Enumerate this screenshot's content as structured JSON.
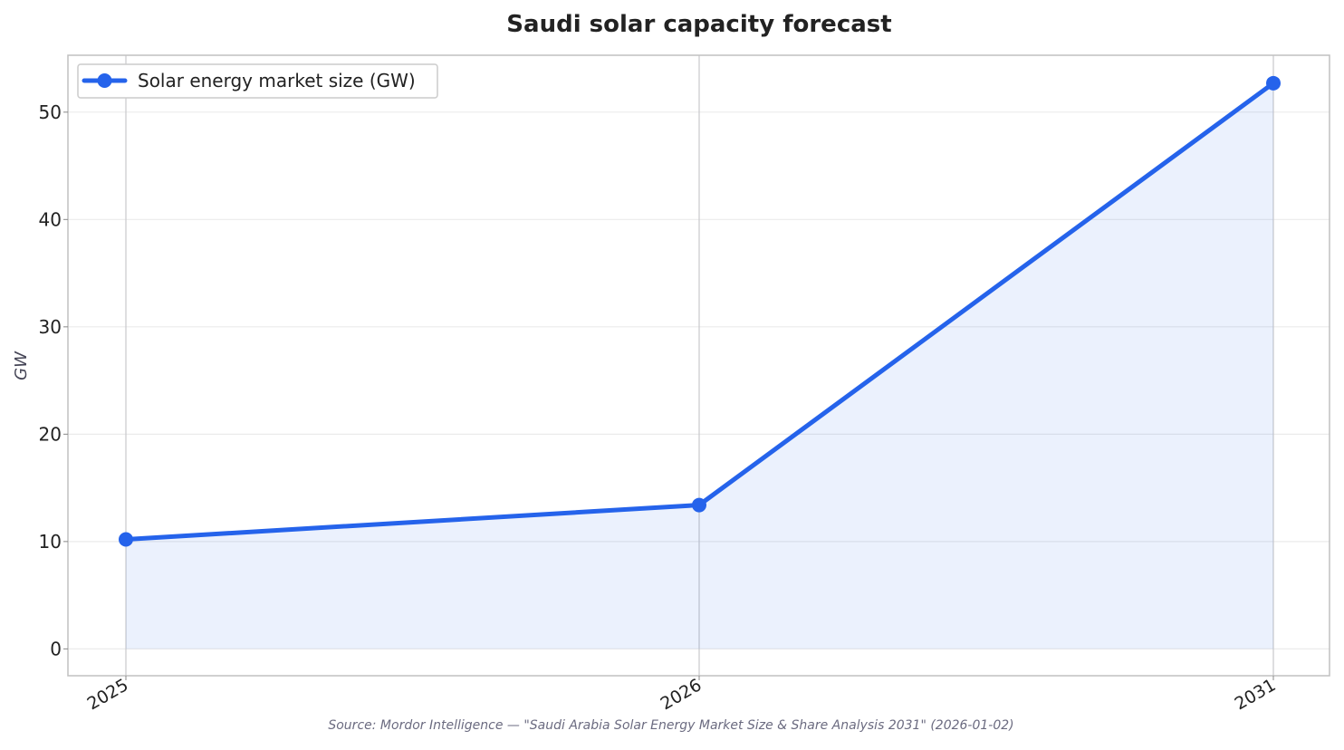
{
  "chart_data": {
    "type": "area",
    "title": "Saudi solar capacity forecast",
    "xlabel": "",
    "ylabel": "GW",
    "categories": [
      "2025",
      "2026",
      "2031"
    ],
    "series": [
      {
        "name": "Solar energy market size (GW)",
        "values": [
          10.2,
          13.4,
          52.7
        ]
      }
    ],
    "ylim": [
      -2.5,
      55.3
    ],
    "yticks": [
      0,
      10,
      20,
      30,
      40,
      50
    ],
    "grid": true,
    "legend_position": "top-left",
    "source_note": "Source: Mordor Intelligence — \"Saudi Arabia Solar Energy Market Size & Share Analysis 2031\" (2026-01-02)",
    "colors": {
      "line": "#2563eb",
      "fill": "#2563eb",
      "text": "#222222",
      "axis_label": "#444455",
      "source": "#6b6b80",
      "frame": "#c0c0c0",
      "grid_h": "#ebebeb",
      "grid_v": "#c8c8cc"
    }
  }
}
